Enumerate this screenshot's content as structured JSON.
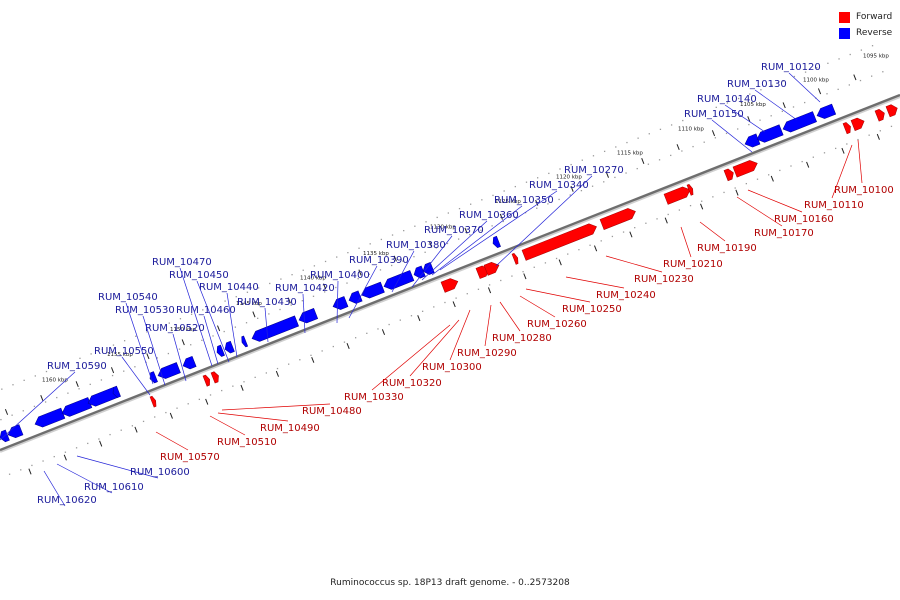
{
  "legend": {
    "forward_label": "Forward",
    "reverse_label": "Reverse",
    "forward_color": "#ff0000",
    "reverse_color": "#0000ff"
  },
  "caption": "Ruminococcus sp. 18P13 draft genome. - 0..2573208",
  "ticks": [
    "1095 kbp",
    "1100 kbp",
    "1105 kbp",
    "1110 kbp",
    "1115 kbp",
    "1120 kbp",
    "1125 kbp",
    "1130 kbp",
    "1135 kbp",
    "1140 kbp",
    "1145 kbp",
    "1150 kbp",
    "1155 kbp",
    "1160 kbp"
  ],
  "reverse_genes": [
    "RUM_10120",
    "RUM_10130",
    "RUM_10140",
    "RUM_10150",
    "RUM_10270",
    "RUM_10340",
    "RUM_10350",
    "RUM_10360",
    "RUM_10370",
    "RUM_10380",
    "RUM_10390",
    "RUM_10400",
    "RUM_10420",
    "RUM_10430",
    "RUM_10440",
    "RUM_10450",
    "RUM_10460",
    "RUM_10470",
    "RUM_10520",
    "RUM_10530",
    "RUM_10540",
    "RUM_10550",
    "RUM_10590",
    "RUM_10600",
    "RUM_10610",
    "RUM_10620"
  ],
  "forward_genes": [
    "RUM_10100",
    "RUM_10110",
    "RUM_10160",
    "RUM_10170",
    "RUM_10190",
    "RUM_10210",
    "RUM_10230",
    "RUM_10240",
    "RUM_10250",
    "RUM_10260",
    "RUM_10280",
    "RUM_10290",
    "RUM_10300",
    "RUM_10320",
    "RUM_10330",
    "RUM_10480",
    "RUM_10490",
    "RUM_10510",
    "RUM_10570"
  ]
}
